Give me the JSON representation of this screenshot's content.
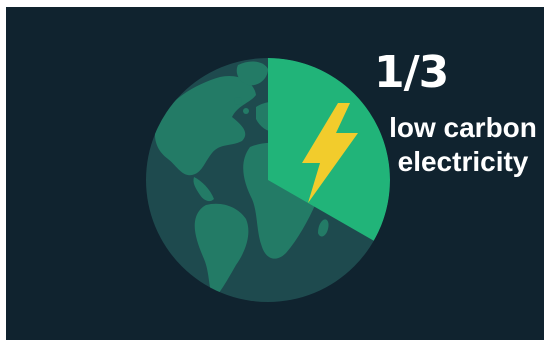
{
  "headline": {
    "fraction": "1/3",
    "line1": "low carbon",
    "line2": "electricity"
  },
  "share": {
    "value": 0.333,
    "label": "1/3"
  },
  "colors": {
    "background": "#10232f",
    "globe_dark": "#1e4a4e",
    "globe_land": "#237b66",
    "highlight_segment": "#21b479",
    "bolt": "#f2cc2c",
    "text": "#ffffff"
  },
  "icons": {
    "globe": "earth-globe-icon",
    "bolt": "lightning-bolt-icon"
  }
}
